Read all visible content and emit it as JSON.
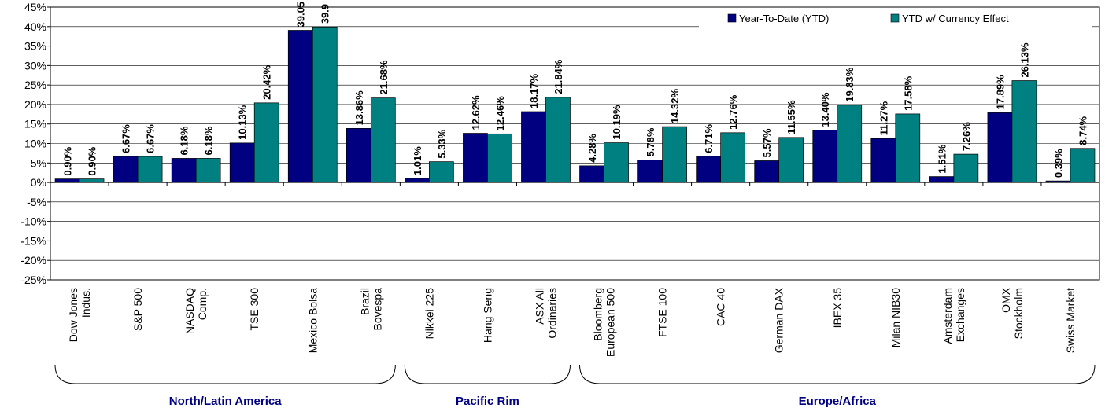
{
  "chart_data": {
    "type": "bar",
    "categories": [
      [
        "Dow Jones",
        "Indus."
      ],
      [
        "S&P 500"
      ],
      [
        "NASDAQ",
        "Comp."
      ],
      [
        "TSE 300"
      ],
      [
        "Mexico Bolsa"
      ],
      [
        "Brazil",
        "Bovespa"
      ],
      [
        "Nikkei 225"
      ],
      [
        "Hang Seng"
      ],
      [
        "ASX All",
        "Ordinaries"
      ],
      [
        "Bloomberg",
        "European 500"
      ],
      [
        "FTSE 100"
      ],
      [
        "CAC 40"
      ],
      [
        "German DAX"
      ],
      [
        "IBEX 35"
      ],
      [
        "Milan NIB30"
      ],
      [
        "Amsterdam",
        "Exchanges"
      ],
      [
        "OMX",
        "Stockholm"
      ],
      [
        "Swiss Market"
      ]
    ],
    "series": [
      {
        "name": "Year-To-Date (YTD)",
        "color": "#000080",
        "values": [
          0.9,
          6.67,
          6.18,
          10.13,
          39.05,
          13.86,
          1.01,
          12.62,
          18.17,
          4.28,
          5.78,
          6.71,
          5.57,
          13.4,
          11.27,
          1.51,
          17.89,
          0.39
        ],
        "labels": [
          "0.90%",
          "6.67%",
          "6.18%",
          "10.13%",
          "39.05",
          "13.86%",
          "1.01%",
          "12.62%",
          "18.17%",
          "4.28%",
          "5.78%",
          "6.71%",
          "5.57%",
          "13.40%",
          "11.27%",
          "1.51%",
          "17.89%",
          "0.39%"
        ]
      },
      {
        "name": "YTD w/ Currency Effect",
        "color": "#008080",
        "values": [
          0.9,
          6.67,
          6.18,
          20.42,
          39.9,
          21.68,
          5.33,
          12.46,
          21.84,
          10.19,
          14.32,
          12.76,
          11.55,
          19.83,
          17.58,
          7.26,
          26.13,
          8.74
        ],
        "labels": [
          "0.90%",
          "6.67%",
          "6.18%",
          "20.42%",
          "39.9",
          "21.68%",
          "5.33%",
          "12.46%",
          "21.84%",
          "10.19%",
          "14.32%",
          "12.76%",
          "11.55%",
          "19.83%",
          "17.58%",
          "7.26%",
          "26.13%",
          "8.74%"
        ]
      }
    ],
    "ylim": [
      -25,
      45
    ],
    "yticks": [
      "45%",
      "40%",
      "35%",
      "30%",
      "25%",
      "20%",
      "15%",
      "10%",
      "5%",
      "0%",
      "-5%",
      "-10%",
      "-15%",
      "-20%",
      "-25%"
    ],
    "ytick_values": [
      45,
      40,
      35,
      30,
      25,
      20,
      15,
      10,
      5,
      0,
      -5,
      -10,
      -15,
      -20,
      -25
    ],
    "grid": true,
    "legend": "top-right",
    "groups": [
      {
        "label": "North/Latin America",
        "start": 0,
        "end": 5
      },
      {
        "label": "Pacific Rim",
        "start": 6,
        "end": 8
      },
      {
        "label": "Europe/Africa",
        "start": 9,
        "end": 17
      }
    ]
  }
}
